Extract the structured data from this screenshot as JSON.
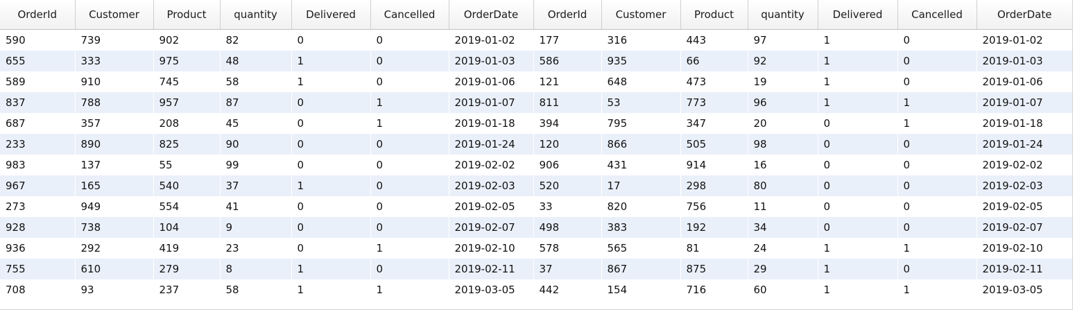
{
  "grid": {
    "columns": [
      "OrderId",
      "Customer",
      "Product",
      "quantity",
      "Delivered",
      "Cancelled",
      "OrderDate",
      "OrderId",
      "Customer",
      "Product",
      "quantity",
      "Delivered",
      "Cancelled",
      "OrderDate"
    ],
    "rows": [
      [
        "590",
        "739",
        "902",
        "82",
        "0",
        "0",
        "2019-01-02",
        "177",
        "316",
        "443",
        "97",
        "1",
        "0",
        "2019-01-02"
      ],
      [
        "655",
        "333",
        "975",
        "48",
        "1",
        "0",
        "2019-01-03",
        "586",
        "935",
        "66",
        "92",
        "1",
        "0",
        "2019-01-03"
      ],
      [
        "589",
        "910",
        "745",
        "58",
        "1",
        "0",
        "2019-01-06",
        "121",
        "648",
        "473",
        "19",
        "1",
        "0",
        "2019-01-06"
      ],
      [
        "837",
        "788",
        "957",
        "87",
        "0",
        "1",
        "2019-01-07",
        "811",
        "53",
        "773",
        "96",
        "1",
        "1",
        "2019-01-07"
      ],
      [
        "687",
        "357",
        "208",
        "45",
        "0",
        "1",
        "2019-01-18",
        "394",
        "795",
        "347",
        "20",
        "0",
        "1",
        "2019-01-18"
      ],
      [
        "233",
        "890",
        "825",
        "90",
        "0",
        "0",
        "2019-01-24",
        "120",
        "866",
        "505",
        "98",
        "0",
        "0",
        "2019-01-24"
      ],
      [
        "983",
        "137",
        "55",
        "99",
        "0",
        "0",
        "2019-02-02",
        "906",
        "431",
        "914",
        "16",
        "0",
        "0",
        "2019-02-02"
      ],
      [
        "967",
        "165",
        "540",
        "37",
        "1",
        "0",
        "2019-02-03",
        "520",
        "17",
        "298",
        "80",
        "0",
        "0",
        "2019-02-03"
      ],
      [
        "273",
        "949",
        "554",
        "41",
        "0",
        "0",
        "2019-02-05",
        "33",
        "820",
        "756",
        "11",
        "0",
        "0",
        "2019-02-05"
      ],
      [
        "928",
        "738",
        "104",
        "9",
        "0",
        "0",
        "2019-02-07",
        "498",
        "383",
        "192",
        "34",
        "0",
        "0",
        "2019-02-07"
      ],
      [
        "936",
        "292",
        "419",
        "23",
        "0",
        "1",
        "2019-02-10",
        "578",
        "565",
        "81",
        "24",
        "1",
        "1",
        "2019-02-10"
      ],
      [
        "755",
        "610",
        "279",
        "8",
        "1",
        "0",
        "2019-02-11",
        "37",
        "867",
        "875",
        "29",
        "1",
        "0",
        "2019-02-11"
      ],
      [
        "708",
        "93",
        "237",
        "58",
        "1",
        "1",
        "2019-03-05",
        "442",
        "154",
        "716",
        "60",
        "1",
        "1",
        "2019-03-05"
      ]
    ]
  },
  "colors": {
    "row_alt": "#eaf0fa",
    "row_base": "#ffffff",
    "header_bg": "#f1f1f1"
  }
}
